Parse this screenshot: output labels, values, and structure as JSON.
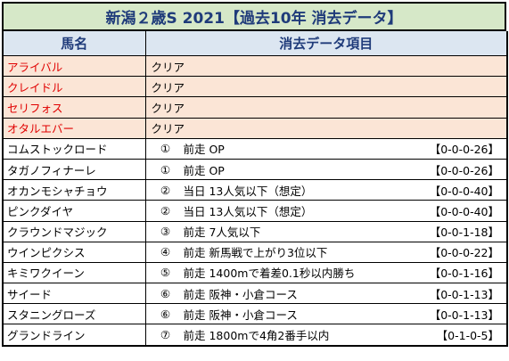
{
  "title": "新潟２歳S 2021【過去10年 消去データ】",
  "headers": {
    "name": "馬名",
    "data": "消去データ項目"
  },
  "cleared_rows": [
    {
      "name": "アライバル",
      "status": "クリア"
    },
    {
      "name": "クレイドル",
      "status": "クリア"
    },
    {
      "name": "セリフォス",
      "status": "クリア"
    },
    {
      "name": "オタルエバー",
      "status": "クリア"
    }
  ],
  "eliminated_rows": [
    {
      "name": "コムストックロード",
      "num": "①",
      "condition": "前走 OP",
      "record": "【0-0-0-26】"
    },
    {
      "name": "タガノフィナーレ",
      "num": "①",
      "condition": "前走 OP",
      "record": "【0-0-0-26】"
    },
    {
      "name": "オカンモシャチョウ",
      "num": "②",
      "condition": "当日 13人気以下（想定）",
      "record": "【0-0-0-40】"
    },
    {
      "name": "ピンクダイヤ",
      "num": "②",
      "condition": "当日 13人気以下（想定）",
      "record": "【0-0-0-40】"
    },
    {
      "name": "クラウンドマジック",
      "num": "③",
      "condition": "前走 7人気以下",
      "record": "【0-0-1-18】"
    },
    {
      "name": "ウインピクシス",
      "num": "④",
      "condition": "前走 新馬戦で上がり3位以下",
      "record": "【0-0-0-22】"
    },
    {
      "name": "キミワクイーン",
      "num": "⑤",
      "condition": "前走 1400mで着差0.1秒以内勝ち",
      "record": "【0-0-1-16】"
    },
    {
      "name": "サイード",
      "num": "⑥",
      "condition": "前走 阪神・小倉コース",
      "record": "【0-0-1-13】"
    },
    {
      "name": "スタニングローズ",
      "num": "⑥",
      "condition": "前走 阪神・小倉コース",
      "record": "【0-0-1-13】"
    },
    {
      "name": "グランドライン",
      "num": "⑦",
      "condition": "前走 1800mで4角2番手以内",
      "record": "【0-1-0-5】"
    }
  ],
  "colors": {
    "title_bg": "#d6e8c8",
    "header_bg": "#dce6f1",
    "header_text": "#1f3b7a",
    "cleared_bg": "#fbe5d6",
    "cleared_name_text": "#e00000"
  }
}
